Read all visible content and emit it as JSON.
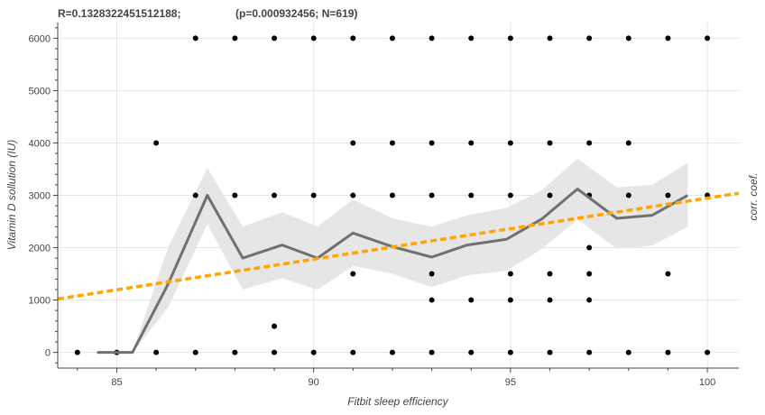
{
  "chart_data": {
    "type": "scatter",
    "title_parts": [
      "R=0.1328322451512188;",
      "(p=0.000932456; N=619)"
    ],
    "xlabel": "Fitbit sleep efficiency",
    "ylabel": "Vitamin D sollution (IU)",
    "right_label": "corr. coef.",
    "xlim": [
      83.5,
      100.8
    ],
    "ylim": [
      -300,
      6300
    ],
    "x_ticks": [
      85,
      90,
      95,
      100
    ],
    "y_ticks": [
      0,
      1000,
      2000,
      3000,
      4000,
      5000,
      6000
    ],
    "grid": true,
    "colors": {
      "points": "#000000",
      "mean_line": "#707070",
      "band": "#e6e6e6",
      "regression": "#ffa500"
    },
    "points": [
      [
        84,
        0
      ],
      [
        85,
        0
      ],
      [
        86,
        0
      ],
      [
        86,
        4000
      ],
      [
        87,
        0
      ],
      [
        87,
        3000
      ],
      [
        87,
        6000
      ],
      [
        88,
        0
      ],
      [
        88,
        3000
      ],
      [
        88,
        6000
      ],
      [
        89,
        0
      ],
      [
        89,
        500
      ],
      [
        89,
        3000
      ],
      [
        89,
        6000
      ],
      [
        90,
        0
      ],
      [
        90,
        3000
      ],
      [
        90,
        6000
      ],
      [
        91,
        0
      ],
      [
        91,
        1500
      ],
      [
        91,
        3000
      ],
      [
        91,
        4000
      ],
      [
        91,
        6000
      ],
      [
        92,
        0
      ],
      [
        92,
        3000
      ],
      [
        92,
        4000
      ],
      [
        92,
        6000
      ],
      [
        93,
        0
      ],
      [
        93,
        1000
      ],
      [
        93,
        1500
      ],
      [
        93,
        3000
      ],
      [
        93,
        4000
      ],
      [
        93,
        6000
      ],
      [
        94,
        0
      ],
      [
        94,
        1000
      ],
      [
        94,
        3000
      ],
      [
        94,
        4000
      ],
      [
        94,
        6000
      ],
      [
        95,
        0
      ],
      [
        95,
        1000
      ],
      [
        95,
        1500
      ],
      [
        95,
        3000
      ],
      [
        95,
        4000
      ],
      [
        95,
        6000
      ],
      [
        96,
        0
      ],
      [
        96,
        1000
      ],
      [
        96,
        1500
      ],
      [
        96,
        3000
      ],
      [
        96,
        4000
      ],
      [
        96,
        6000
      ],
      [
        97,
        0
      ],
      [
        97,
        1000
      ],
      [
        97,
        1500
      ],
      [
        97,
        2000
      ],
      [
        97,
        3000
      ],
      [
        97,
        4000
      ],
      [
        97,
        6000
      ],
      [
        98,
        0
      ],
      [
        98,
        3000
      ],
      [
        98,
        4000
      ],
      [
        98,
        6000
      ],
      [
        99,
        0
      ],
      [
        99,
        1500
      ],
      [
        99,
        3000
      ],
      [
        99,
        6000
      ],
      [
        100,
        0
      ],
      [
        100,
        3000
      ],
      [
        100,
        6000
      ]
    ],
    "mean_line": [
      [
        84.5,
        0
      ],
      [
        85,
        0
      ],
      [
        85.4,
        0
      ],
      [
        86.3,
        1300
      ],
      [
        87.3,
        3000
      ],
      [
        88.2,
        1800
      ],
      [
        89.2,
        2050
      ],
      [
        90.1,
        1800
      ],
      [
        91.0,
        2280
      ],
      [
        92.0,
        2020
      ],
      [
        93.0,
        1820
      ],
      [
        93.9,
        2050
      ],
      [
        94.9,
        2160
      ],
      [
        95.8,
        2550
      ],
      [
        96.7,
        3120
      ],
      [
        97.7,
        2560
      ],
      [
        98.6,
        2620
      ],
      [
        99.5,
        3000
      ]
    ],
    "band_upper": [
      [
        85.4,
        0
      ],
      [
        86.3,
        2000
      ],
      [
        87.3,
        3520
      ],
      [
        88.2,
        2400
      ],
      [
        89.2,
        2680
      ],
      [
        90.1,
        2400
      ],
      [
        91.0,
        2920
      ],
      [
        92.0,
        2560
      ],
      [
        93.0,
        2400
      ],
      [
        93.9,
        2620
      ],
      [
        94.9,
        2760
      ],
      [
        95.8,
        3100
      ],
      [
        96.7,
        3700
      ],
      [
        97.7,
        3150
      ],
      [
        98.6,
        3200
      ],
      [
        99.5,
        3620
      ]
    ],
    "band_lower": [
      [
        85.4,
        0
      ],
      [
        86.3,
        850
      ],
      [
        87.3,
        2450
      ],
      [
        88.2,
        1200
      ],
      [
        89.2,
        1420
      ],
      [
        90.1,
        1200
      ],
      [
        91.0,
        1650
      ],
      [
        92.0,
        1500
      ],
      [
        93.0,
        1250
      ],
      [
        93.9,
        1470
      ],
      [
        94.9,
        1560
      ],
      [
        95.8,
        1980
      ],
      [
        96.7,
        2540
      ],
      [
        97.7,
        1980
      ],
      [
        98.6,
        2040
      ],
      [
        99.5,
        2400
      ]
    ],
    "regression_line": [
      [
        83.5,
        1020
      ],
      [
        100.8,
        3040
      ]
    ]
  }
}
